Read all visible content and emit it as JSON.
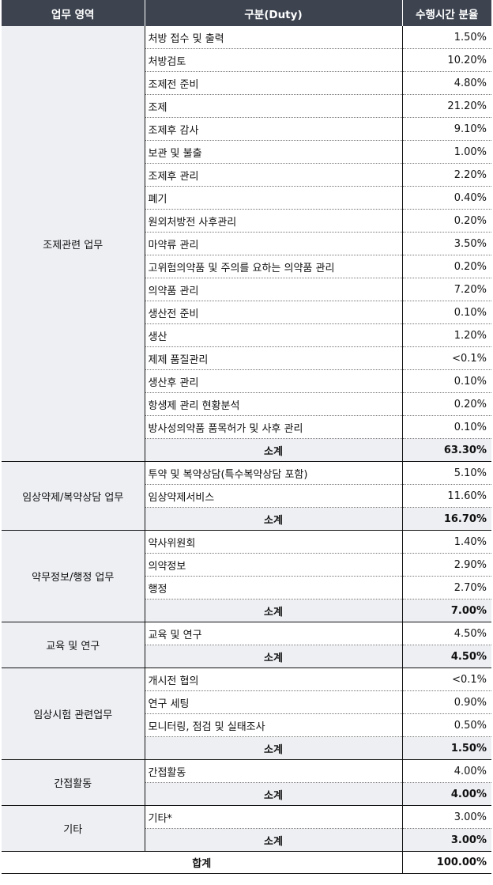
{
  "header": {
    "area": "업무 영역",
    "duty": "구분(Duty)",
    "share": "수행시간 분율"
  },
  "groups": [
    {
      "area": "조제관련 업무",
      "items": [
        {
          "duty": "처방 접수 및 출력",
          "share": "1.50%"
        },
        {
          "duty": "처방검토",
          "share": "10.20%"
        },
        {
          "duty": "조제전 준비",
          "share": "4.80%"
        },
        {
          "duty": "조제",
          "share": "21.20%"
        },
        {
          "duty": "조제후 감사",
          "share": "9.10%"
        },
        {
          "duty": "보관 및 불출",
          "share": "1.00%"
        },
        {
          "duty": "조제후 관리",
          "share": "2.20%"
        },
        {
          "duty": "폐기",
          "share": "0.40%"
        },
        {
          "duty": "원외처방전 사후관리",
          "share": "0.20%"
        },
        {
          "duty": "마약류 관리",
          "share": "3.50%"
        },
        {
          "duty": "고위험의약품 및 주의를 요하는 의약품 관리",
          "share": "0.20%"
        },
        {
          "duty": "의약품 관리",
          "share": "7.20%"
        },
        {
          "duty": "생산전 준비",
          "share": "0.10%"
        },
        {
          "duty": "생산",
          "share": "1.20%"
        },
        {
          "duty": "제제 품질관리",
          "share": "<0.1%"
        },
        {
          "duty": "생산후 관리",
          "share": "0.10%"
        },
        {
          "duty": "항생제 관리 현황분석",
          "share": "0.20%"
        },
        {
          "duty": "방사성의약품 품목허가 및 사후 관리",
          "share": "0.10%"
        }
      ],
      "subtotal_label": "소계",
      "subtotal": "63.30%"
    },
    {
      "area": "임상약제/복약상담 업무",
      "items": [
        {
          "duty": "투약 및 복약상담(특수복약상담 포함)",
          "share": "5.10%"
        },
        {
          "duty": "임상약제서비스",
          "share": "11.60%"
        }
      ],
      "subtotal_label": "소계",
      "subtotal": "16.70%"
    },
    {
      "area": "약무정보/행정 업무",
      "items": [
        {
          "duty": "약사위원회",
          "share": "1.40%"
        },
        {
          "duty": "의약정보",
          "share": "2.90%"
        },
        {
          "duty": "행정",
          "share": "2.70%"
        }
      ],
      "subtotal_label": "소계",
      "subtotal": "7.00%"
    },
    {
      "area": "교육 및 연구",
      "items": [
        {
          "duty": "교육 및 연구",
          "share": "4.50%"
        }
      ],
      "subtotal_label": "소계",
      "subtotal": "4.50%"
    },
    {
      "area": "임상시험 관련업무",
      "items": [
        {
          "duty": "개시전 협의",
          "share": "<0.1%"
        },
        {
          "duty": "연구 세팅",
          "share": "0.90%"
        },
        {
          "duty": "모니터링, 점검 및 실태조사",
          "share": "0.50%"
        }
      ],
      "subtotal_label": "소계",
      "subtotal": "1.50%"
    },
    {
      "area": "간접활동",
      "items": [
        {
          "duty": "간접활동",
          "share": "4.00%"
        }
      ],
      "subtotal_label": "소계",
      "subtotal": "4.00%"
    },
    {
      "area": "기타",
      "items": [
        {
          "duty": "기타*",
          "share": "3.00%"
        }
      ],
      "subtotal_label": "소계",
      "subtotal": "3.00%"
    }
  ],
  "total": {
    "label": "합계",
    "share": "100.00%"
  }
}
